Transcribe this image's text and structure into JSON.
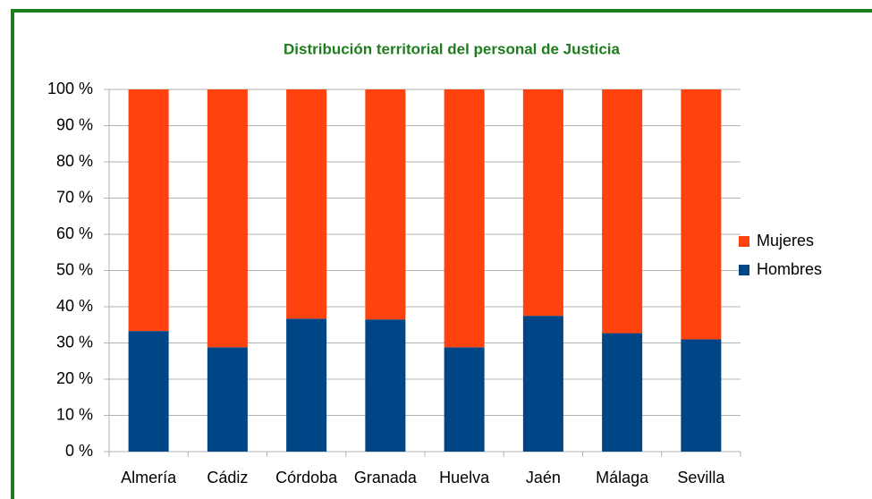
{
  "chart_data": {
    "type": "stacked_bar_100",
    "title": "Distribución territorial del personal de Justicia",
    "categories": [
      "Almería",
      "Cádiz",
      "Córdoba",
      "Granada",
      "Huelva",
      "Jaén",
      "Málaga",
      "Sevilla"
    ],
    "series": [
      {
        "name": "Hombres",
        "color": "#004586",
        "values": [
          33.3,
          28.8,
          36.7,
          36.5,
          28.8,
          37.5,
          32.7,
          31.0
        ]
      },
      {
        "name": "Mujeres",
        "color": "#ff420e",
        "values": [
          66.7,
          71.2,
          63.3,
          63.5,
          71.2,
          62.5,
          67.3,
          69.0
        ]
      }
    ],
    "ylim": [
      0,
      100
    ],
    "yticks": [
      {
        "value": 0,
        "label": "0 %"
      },
      {
        "value": 10,
        "label": "10 %"
      },
      {
        "value": 20,
        "label": "20 %"
      },
      {
        "value": 30,
        "label": "30 %"
      },
      {
        "value": 40,
        "label": "40 %"
      },
      {
        "value": 50,
        "label": "50 %"
      },
      {
        "value": 60,
        "label": "60 %"
      },
      {
        "value": 70,
        "label": "70 %"
      },
      {
        "value": 80,
        "label": "80 %"
      },
      {
        "value": 90,
        "label": "90 %"
      },
      {
        "value": 100,
        "label": "100 %"
      }
    ],
    "grid": true,
    "legend": "right"
  }
}
